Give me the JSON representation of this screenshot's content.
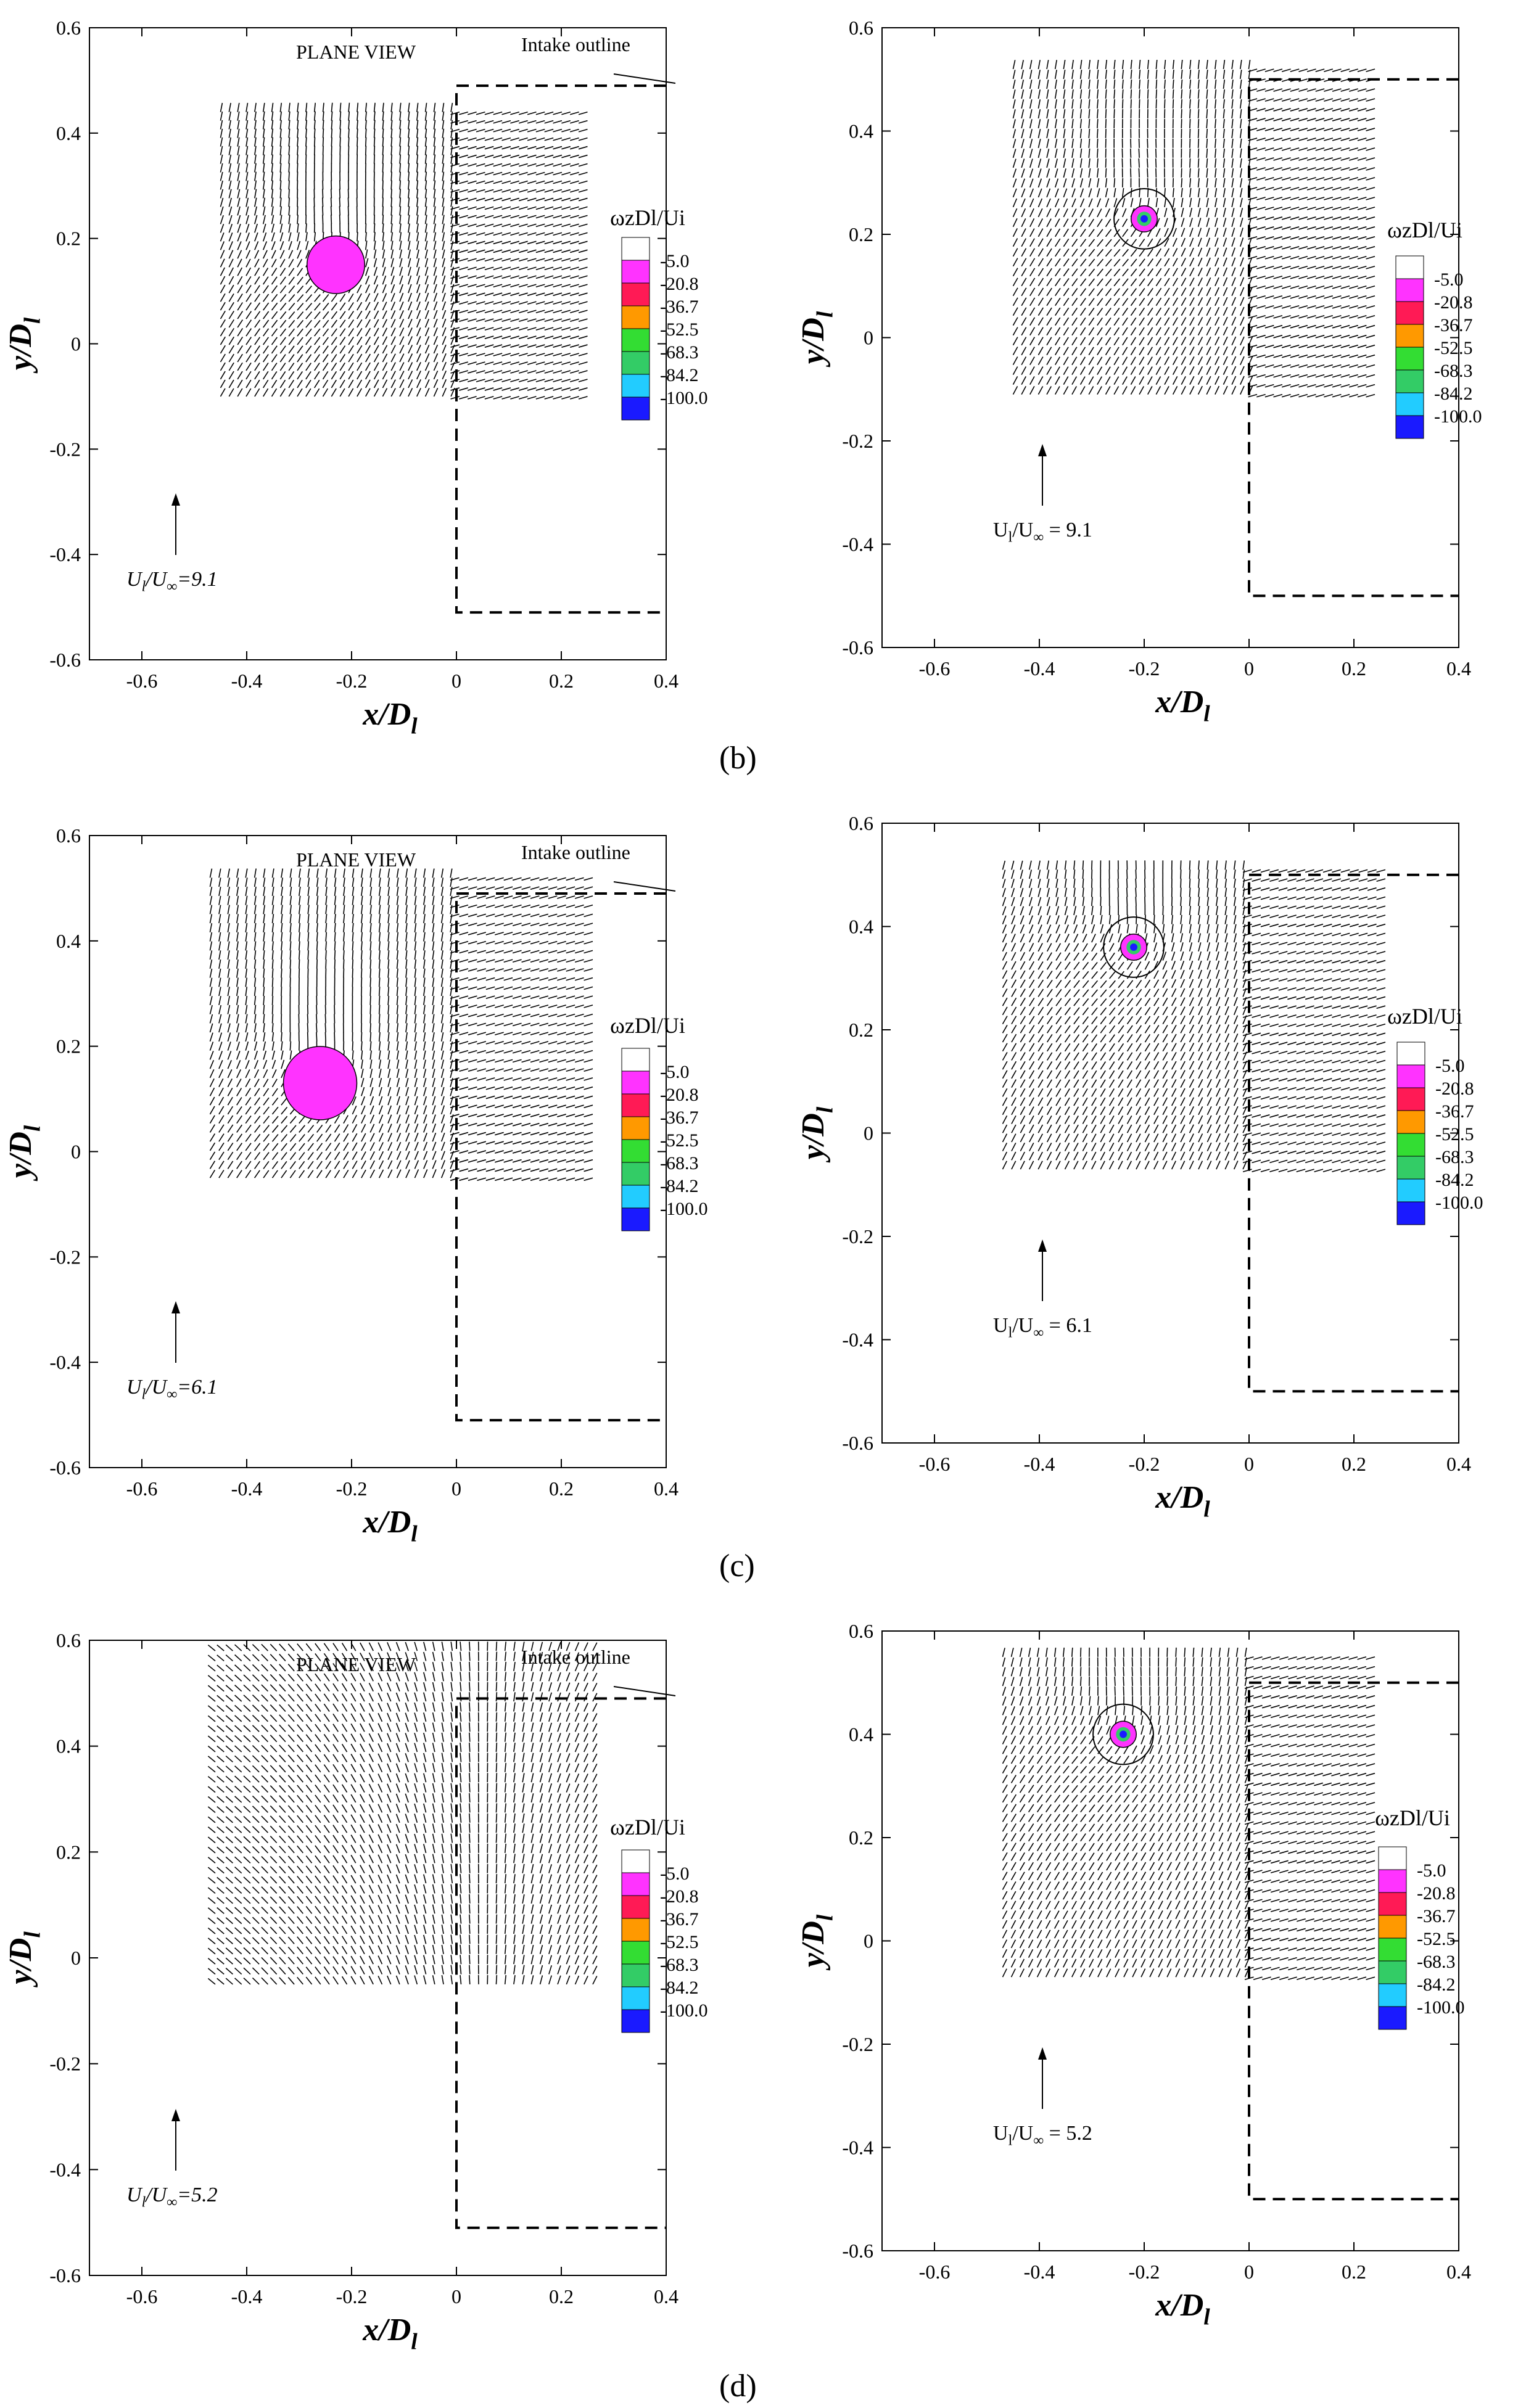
{
  "figure": {
    "panel_labels": [
      "(b)",
      "(c)",
      "(d)"
    ]
  },
  "legend": {
    "title": "ωzDl/Ui",
    "levels": [
      "-5.0",
      "-20.8",
      "-36.7",
      "-52.5",
      "-68.3",
      "-84.2",
      "-100.0"
    ],
    "colors": [
      "#ffffff",
      "#ff33ff",
      "#ff1a55",
      "#ff9900",
      "#33dd33",
      "#33cc66",
      "#22ccff",
      "#1a1aff"
    ]
  },
  "colors": {
    "core": "#ff33ff",
    "arrow": "#000000"
  },
  "chart_data": [
    {
      "type": "vector-field",
      "panel": "b",
      "xlabel": "x/Dl",
      "ylabel": "y/Dl",
      "xlim": [
        -0.7,
        0.4
      ],
      "ylim": [
        -0.6,
        0.6
      ],
      "xticks": [
        "-0.6",
        "-0.4",
        "-0.2",
        "0",
        "0.2",
        "0.4"
      ],
      "yticks": [
        "-0.6",
        "-0.4",
        "-0.2",
        "0",
        "0.2",
        "0.4",
        "0.6"
      ],
      "annotations": [
        "PLANE VIEW",
        "Intake outline"
      ],
      "reference_label": "Ul/U∞=9.1",
      "vortex_center": [
        -0.23,
        0.15
      ],
      "vortex_core_radius": 0.055,
      "field_x": [
        -0.45,
        0.25
      ],
      "field_y": [
        -0.1,
        0.44
      ],
      "outline": [
        [
          0.4,
          0.49
        ],
        [
          0,
          0.49
        ],
        [
          0,
          -0.51
        ],
        [
          0.4,
          -0.51
        ]
      ]
    },
    {
      "type": "vector-field",
      "panel": "b",
      "xlabel": "x/Dl",
      "ylabel": "y/Dl",
      "xlim": [
        -0.7,
        0.4
      ],
      "ylim": [
        -0.6,
        0.6
      ],
      "xticks": [
        "-0.6",
        "-0.4",
        "-0.2",
        "0",
        "0.2",
        "0.4"
      ],
      "yticks": [
        "-0.6",
        "-0.4",
        "-0.2",
        "0",
        "0.2",
        "0.4",
        "0.6"
      ],
      "annotations": [],
      "reference_label": "Ul/U∞ = 9.1",
      "vortex_center": [
        -0.2,
        0.23
      ],
      "vortex_core_radius": 0.025,
      "field_x": [
        -0.45,
        0.24
      ],
      "field_y": [
        -0.11,
        0.52
      ],
      "outline": [
        [
          0.4,
          0.5
        ],
        [
          0,
          0.5
        ],
        [
          0,
          -0.5
        ],
        [
          0.4,
          -0.5
        ]
      ]
    },
    {
      "type": "vector-field",
      "panel": "c",
      "xlabel": "x/Dl",
      "ylabel": "y/Dl",
      "xlim": [
        -0.7,
        0.4
      ],
      "ylim": [
        -0.6,
        0.6
      ],
      "xticks": [
        "-0.6",
        "-0.4",
        "-0.2",
        "0",
        "0.2",
        "0.4"
      ],
      "yticks": [
        "-0.6",
        "-0.4",
        "-0.2",
        "0",
        "0.2",
        "0.4",
        "0.6"
      ],
      "annotations": [
        "PLANE VIEW",
        "Intake outline"
      ],
      "reference_label": "Ul/U∞=6.1",
      "vortex_center": [
        -0.26,
        0.13
      ],
      "vortex_core_radius": 0.07,
      "field_x": [
        -0.47,
        0.26
      ],
      "field_y": [
        -0.05,
        0.52
      ],
      "outline": [
        [
          0.4,
          0.49
        ],
        [
          0,
          0.49
        ],
        [
          0,
          -0.51
        ],
        [
          0.4,
          -0.51
        ]
      ]
    },
    {
      "type": "vector-field",
      "panel": "c",
      "xlabel": "x/Dl",
      "ylabel": "y/Dl",
      "xlim": [
        -0.7,
        0.4
      ],
      "ylim": [
        -0.6,
        0.6
      ],
      "xticks": [
        "-0.6",
        "-0.4",
        "-0.2",
        "0",
        "0.2",
        "0.4"
      ],
      "yticks": [
        "-0.6",
        "-0.4",
        "-0.2",
        "0",
        "0.2",
        "0.4",
        "0.6"
      ],
      "annotations": [],
      "reference_label": "Ul/U∞ = 6.1",
      "vortex_center": [
        -0.22,
        0.36
      ],
      "vortex_core_radius": 0.025,
      "field_x": [
        -0.47,
        0.26
      ],
      "field_y": [
        -0.07,
        0.51
      ],
      "outline": [
        [
          0.4,
          0.5
        ],
        [
          0,
          0.5
        ],
        [
          0,
          -0.5
        ],
        [
          0.4,
          -0.5
        ]
      ]
    },
    {
      "type": "vector-field",
      "panel": "d",
      "xlabel": "x/Dl",
      "ylabel": "y/Dl",
      "xlim": [
        -0.7,
        0.4
      ],
      "ylim": [
        -0.6,
        0.6
      ],
      "xticks": [
        "-0.6",
        "-0.4",
        "-0.2",
        "0",
        "0.2",
        "0.4"
      ],
      "yticks": [
        "-0.6",
        "-0.4",
        "-0.2",
        "0",
        "0.2",
        "0.4",
        "0.6"
      ],
      "annotations": [
        "PLANE VIEW",
        "Intake outline"
      ],
      "reference_label": "Ul/U∞=5.2",
      "vortex_center": null,
      "vortex_core_radius": 0,
      "field_x": [
        -0.46,
        0.26
      ],
      "field_y": [
        -0.05,
        0.58
      ],
      "outline": [
        [
          0.4,
          0.49
        ],
        [
          0,
          0.49
        ],
        [
          0,
          -0.51
        ],
        [
          0.4,
          -0.51
        ]
      ]
    },
    {
      "type": "vector-field",
      "panel": "d",
      "xlabel": "x/Dl",
      "ylabel": "y/Dl",
      "xlim": [
        -0.7,
        0.4
      ],
      "ylim": [
        -0.6,
        0.6
      ],
      "xticks": [
        "-0.6",
        "-0.4",
        "-0.2",
        "0",
        "0.2",
        "0.4"
      ],
      "yticks": [
        "-0.6",
        "-0.4",
        "-0.2",
        "0",
        "0.2",
        "0.4",
        "0.6"
      ],
      "annotations": [],
      "reference_label": "Ul/U∞ = 5.2",
      "vortex_center": [
        -0.24,
        0.4
      ],
      "vortex_core_radius": 0.025,
      "field_x": [
        -0.47,
        0.24
      ],
      "field_y": [
        -0.07,
        0.55
      ],
      "outline": [
        [
          0.4,
          0.5
        ],
        [
          0,
          0.5
        ],
        [
          0,
          -0.5
        ],
        [
          0.4,
          -0.5
        ]
      ]
    }
  ]
}
